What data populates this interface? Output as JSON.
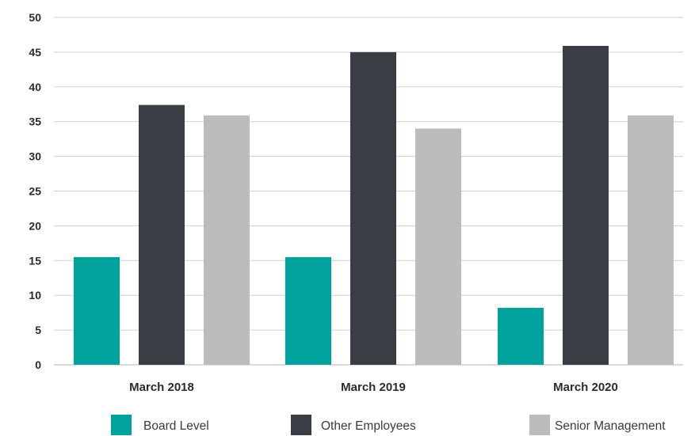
{
  "chart_data": {
    "type": "bar",
    "categories": [
      "March 2018",
      "March 2019",
      "March 2020"
    ],
    "series": [
      {
        "name": "Board Level",
        "values": [
          15.5,
          15.5,
          8.2
        ],
        "color": "#00a39b"
      },
      {
        "name": "Other Employees",
        "values": [
          37.4,
          45.0,
          45.9
        ],
        "color": "#3b3d44"
      },
      {
        "name": "Senior Management",
        "values": [
          35.9,
          34.0,
          35.9
        ],
        "color": "#bcbcbc"
      }
    ],
    "title": "",
    "xlabel": "",
    "ylabel": "",
    "ylim": [
      0,
      50
    ],
    "yticks": [
      "0",
      "5",
      "10",
      "15",
      "20",
      "25",
      "30",
      "35",
      "40",
      "45",
      "50"
    ],
    "grid": true,
    "legend_position": "bottom"
  }
}
